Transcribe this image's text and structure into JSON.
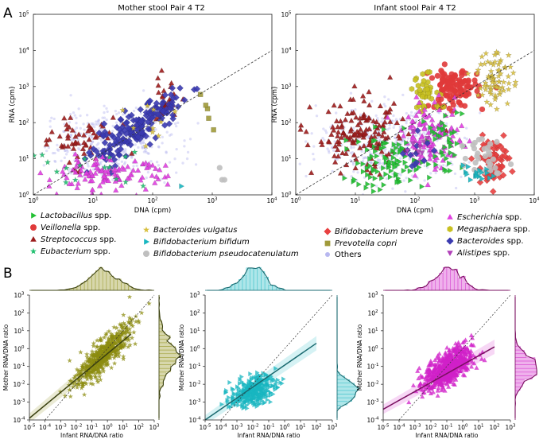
{
  "panel_labels": {
    "a": "A",
    "b": "B"
  },
  "legend": {
    "items": [
      {
        "label": "Lactobacillus",
        "suffix": " spp.",
        "italic": true,
        "color": "#22c033",
        "marker": "triangle-right"
      },
      {
        "label": "Veillonella",
        "suffix": " spp.",
        "italic": true,
        "color": "#e03a3a",
        "marker": "circle"
      },
      {
        "label": "Streptococcus",
        "suffix": " spp.",
        "italic": true,
        "color": "#9b1c1c",
        "marker": "triangle-up"
      },
      {
        "label": "Eubacterium",
        "suffix": " spp.",
        "italic": true,
        "color": "#22c070",
        "marker": "star"
      },
      {
        "label": "Bacteroides vulgatus",
        "suffix": "",
        "italic": true,
        "color": "#d8c040",
        "marker": "star"
      },
      {
        "label": "Bifidobacterium bifidum",
        "suffix": "",
        "italic": true,
        "color": "#18b6c0",
        "marker": "triangle-right"
      },
      {
        "label": "Bifidobacterium pseudocatenulatum",
        "suffix": "",
        "italic": true,
        "color": "#bfbfbf",
        "marker": "circle"
      },
      {
        "label": "Bifidobacterium breve",
        "suffix": "",
        "italic": true,
        "color": "#e84040",
        "marker": "diamond"
      },
      {
        "label": "Prevotella copri",
        "suffix": "",
        "italic": true,
        "color": "#a09a3a",
        "marker": "square"
      },
      {
        "label": "Others",
        "suffix": "",
        "italic": false,
        "color": "#b8b8f0",
        "marker": "dot"
      },
      {
        "label": "Escherichia",
        "suffix": " spp.",
        "italic": true,
        "color": "#e040e0",
        "marker": "triangle-up"
      },
      {
        "label": "Megasphaera",
        "suffix": " spp.",
        "italic": true,
        "color": "#c8c020",
        "marker": "hexagon"
      },
      {
        "label": "Bacteroides",
        "suffix": " spp.",
        "italic": true,
        "color": "#3a3ab0",
        "marker": "diamond"
      },
      {
        "label": "Alistipes",
        "suffix": " spp.",
        "italic": true,
        "color": "#b040b8",
        "marker": "triangle-down"
      }
    ]
  },
  "chart_data": [
    {
      "id": "mother_scatter",
      "type": "scatter",
      "title": "Mother stool Pair 4 T2",
      "xlabel": "DNA (cpm)",
      "ylabel": "RNA (cpm)",
      "xscale": "log",
      "yscale": "log",
      "xlim_exp": [
        0,
        4
      ],
      "ylim_exp": [
        0,
        5
      ],
      "x_ticks": [
        {
          "base": "10",
          "exp": "0"
        },
        {
          "base": "10",
          "exp": "1"
        },
        {
          "base": "10",
          "exp": "2"
        },
        {
          "base": "10",
          "exp": "3"
        },
        {
          "base": "10",
          "exp": "4"
        }
      ],
      "y_ticks": [
        {
          "base": "10",
          "exp": "0"
        },
        {
          "base": "10",
          "exp": "1"
        },
        {
          "base": "10",
          "exp": "2"
        },
        {
          "base": "10",
          "exp": "3"
        },
        {
          "base": "10",
          "exp": "4"
        },
        {
          "base": "10",
          "exp": "5"
        }
      ],
      "reference_line": "y = x (dashed)",
      "clusters": [
        {
          "group": "Others",
          "color": "#b8b8f0",
          "marker": "dot",
          "cx": 1.3,
          "cy": 1.4,
          "sx": 0.55,
          "sy": 0.5,
          "n": 380
        },
        {
          "group": "Streptococcus",
          "color": "#9b1c1c",
          "marker": "triangle-up",
          "cx": 0.7,
          "cy": 1.55,
          "sx": 0.35,
          "sy": 0.35,
          "n": 60
        },
        {
          "group": "Streptococcus",
          "color": "#9b1c1c",
          "marker": "triangle-up",
          "cx": 2.2,
          "cy": 2.55,
          "sx": 0.12,
          "sy": 0.3,
          "n": 35
        },
        {
          "group": "Bacteroides",
          "color": "#3a3ab0",
          "marker": "diamond",
          "cx": 1.75,
          "cy": 1.85,
          "sx": 0.38,
          "sy": 0.48,
          "corr": 0.85,
          "n": 170
        },
        {
          "group": "Escherichia",
          "color": "#e040e0",
          "marker": "triangle-up",
          "cx": 1.2,
          "cy": 0.55,
          "sx": 0.5,
          "sy": 0.22,
          "n": 110
        },
        {
          "group": "Eubacterium",
          "color": "#22c070",
          "marker": "star",
          "cx": 0.9,
          "cy": 0.75,
          "sx": 0.5,
          "sy": 0.25,
          "n": 18
        },
        {
          "group": "Bacteroides vulgatus",
          "color": "#d8c040",
          "marker": "star",
          "cx": 2.1,
          "cy": 2.0,
          "sx": 0.25,
          "sy": 0.45,
          "n": 10
        },
        {
          "group": "Prevotella copri",
          "color": "#a09a3a",
          "marker": "square",
          "cx": 2.85,
          "cy": 2.25,
          "sx": 0.15,
          "sy": 0.3,
          "n": 5
        },
        {
          "group": "Bifidobacterium pseudocatenulatum",
          "color": "#bfbfbf",
          "marker": "circle",
          "cx": 3.2,
          "cy": 0.5,
          "sx": 0.06,
          "sy": 0.25,
          "n": 3
        },
        {
          "group": "Bifidobacterium bifidum",
          "color": "#18b6c0",
          "marker": "triangle-right",
          "cx": 2.5,
          "cy": 0.2,
          "sx": 0.02,
          "sy": 0.02,
          "n": 1
        }
      ]
    },
    {
      "id": "infant_scatter",
      "type": "scatter",
      "title": "Infant stool Pair 4 T2",
      "xlabel": "DNA (cpm)",
      "ylabel": "RNA (cpm)",
      "xscale": "log",
      "yscale": "log",
      "xlim_exp": [
        0,
        4
      ],
      "ylim_exp": [
        0,
        5
      ],
      "x_ticks": [
        {
          "base": "10",
          "exp": "0"
        },
        {
          "base": "10",
          "exp": "1"
        },
        {
          "base": "10",
          "exp": "2"
        },
        {
          "base": "10",
          "exp": "3"
        },
        {
          "base": "10",
          "exp": "4"
        }
      ],
      "y_ticks": [
        {
          "base": "10",
          "exp": "0"
        },
        {
          "base": "10",
          "exp": "1"
        },
        {
          "base": "10",
          "exp": "2"
        },
        {
          "base": "10",
          "exp": "3"
        },
        {
          "base": "10",
          "exp": "4"
        },
        {
          "base": "10",
          "exp": "5"
        }
      ],
      "reference_line": "y = x (dashed)",
      "clusters": [
        {
          "group": "Others",
          "color": "#b8b8f0",
          "marker": "dot",
          "cx": 1.6,
          "cy": 1.4,
          "sx": 0.6,
          "sy": 0.5,
          "n": 420
        },
        {
          "group": "Streptococcus",
          "color": "#9b1c1c",
          "marker": "triangle-up",
          "cx": 1.1,
          "cy": 1.6,
          "sx": 0.4,
          "sy": 0.5,
          "n": 150
        },
        {
          "group": "Veillonella",
          "color": "#e03a3a",
          "marker": "circle",
          "cx": 2.65,
          "cy": 2.95,
          "sx": 0.2,
          "sy": 0.28,
          "n": 110
        },
        {
          "group": "Megasphaera",
          "color": "#c8c020",
          "marker": "hexagon",
          "cx": 2.2,
          "cy": 2.8,
          "sx": 0.15,
          "sy": 0.25,
          "n": 40
        },
        {
          "group": "Megasphaera",
          "color": "#d8c040",
          "marker": "star",
          "cx": 3.35,
          "cy": 3.25,
          "sx": 0.15,
          "sy": 0.4,
          "n": 70
        },
        {
          "group": "Escherichia",
          "color": "#e040e0",
          "marker": "triangle-up",
          "cx": 2.3,
          "cy": 1.6,
          "sx": 0.25,
          "sy": 0.45,
          "n": 120
        },
        {
          "group": "Lactobacillus",
          "color": "#22c033",
          "marker": "triangle-right",
          "cx": 1.5,
          "cy": 0.85,
          "sx": 0.35,
          "sy": 0.4,
          "n": 90
        },
        {
          "group": "Lactobacillus",
          "color": "#22c033",
          "marker": "triangle-right",
          "cx": 2.5,
          "cy": 1.4,
          "sx": 0.15,
          "sy": 0.5,
          "n": 40
        },
        {
          "group": "Bifidobacterium breve",
          "color": "#e84040",
          "marker": "diamond",
          "cx": 3.3,
          "cy": 0.95,
          "sx": 0.15,
          "sy": 0.3,
          "n": 70
        },
        {
          "group": "Bifidobacterium pseudocatenulatum",
          "color": "#bfbfbf",
          "marker": "circle",
          "cx": 3.2,
          "cy": 1.2,
          "sx": 0.15,
          "sy": 0.3,
          "n": 30
        },
        {
          "group": "Bifidobacterium bifidum",
          "color": "#18b6c0",
          "marker": "triangle-right",
          "cx": 3.0,
          "cy": 0.55,
          "sx": 0.12,
          "sy": 0.3,
          "n": 18
        },
        {
          "group": "Bacteroides",
          "color": "#3a3ab0",
          "marker": "diamond",
          "cx": 1.95,
          "cy": 1.3,
          "sx": 0.15,
          "sy": 0.3,
          "n": 12
        },
        {
          "group": "Alistipes",
          "color": "#b040b8",
          "marker": "triangle-down",
          "cx": 2.05,
          "cy": 1.5,
          "sx": 0.1,
          "sy": 0.2,
          "n": 8
        }
      ]
    },
    {
      "id": "ratio_megasphaera",
      "type": "scatter",
      "xlabel": "Infant RNA/DNA ratio",
      "ylabel": "Mother RNA/DNA ratio",
      "xscale": "log",
      "yscale": "log",
      "xlim_exp": [
        -5,
        3
      ],
      "ylim_exp": [
        -4,
        3
      ],
      "x_ticks": [
        {
          "base": "10",
          "exp": "-5"
        },
        {
          "base": "10",
          "exp": "-4"
        },
        {
          "base": "10",
          "exp": "-3"
        },
        {
          "base": "10",
          "exp": "-2"
        },
        {
          "base": "10",
          "exp": "-1"
        },
        {
          "base": "10",
          "exp": "0"
        },
        {
          "base": "10",
          "exp": "1"
        },
        {
          "base": "10",
          "exp": "2"
        },
        {
          "base": "10",
          "exp": "3"
        }
      ],
      "y_ticks": [
        {
          "base": "10",
          "exp": "-4"
        },
        {
          "base": "10",
          "exp": "-3"
        },
        {
          "base": "10",
          "exp": "-2"
        },
        {
          "base": "10",
          "exp": "-1"
        },
        {
          "base": "10",
          "exp": "0"
        },
        {
          "base": "10",
          "exp": "1"
        },
        {
          "base": "10",
          "exp": "2"
        },
        {
          "base": "10",
          "exp": "3"
        }
      ],
      "color": "#8c8c10",
      "line_color": "#3a4010",
      "marker": "star",
      "cloud": {
        "cx": -0.3,
        "cy": -0.4,
        "sx": 0.9,
        "sy": 0.85,
        "corr": 0.85,
        "n": 520
      },
      "fit": {
        "x": [
          -5,
          1.5
        ],
        "y": [
          -3.9,
          0.8
        ]
      }
    },
    {
      "id": "ratio_bifidum",
      "type": "scatter",
      "xlabel": "Infant RNA/DNA ratio",
      "ylabel": "Mother RNA/DNA ratio",
      "xscale": "log",
      "yscale": "log",
      "xlim_exp": [
        -5,
        3
      ],
      "ylim_exp": [
        -4,
        3
      ],
      "x_ticks": [
        {
          "base": "10",
          "exp": "-5"
        },
        {
          "base": "10",
          "exp": "-4"
        },
        {
          "base": "10",
          "exp": "-3"
        },
        {
          "base": "10",
          "exp": "-2"
        },
        {
          "base": "10",
          "exp": "-1"
        },
        {
          "base": "10",
          "exp": "0"
        },
        {
          "base": "10",
          "exp": "1"
        },
        {
          "base": "10",
          "exp": "2"
        },
        {
          "base": "10",
          "exp": "3"
        }
      ],
      "y_ticks": [
        {
          "base": "10",
          "exp": "-4"
        },
        {
          "base": "10",
          "exp": "-3"
        },
        {
          "base": "10",
          "exp": "-2"
        },
        {
          "base": "10",
          "exp": "-1"
        },
        {
          "base": "10",
          "exp": "0"
        },
        {
          "base": "10",
          "exp": "1"
        },
        {
          "base": "10",
          "exp": "2"
        },
        {
          "base": "10",
          "exp": "3"
        }
      ],
      "color": "#18b6c0",
      "line_color": "#1a6a70",
      "marker": "triangle-right",
      "cloud": {
        "cx": -2.0,
        "cy": -2.4,
        "sx": 0.7,
        "sy": 0.45,
        "corr": 0.45,
        "n": 300
      },
      "fit": {
        "x": [
          -5,
          2.0
        ],
        "y": [
          -4.0,
          0.3
        ]
      }
    },
    {
      "id": "ratio_alistipes",
      "type": "scatter",
      "xlabel": "Infant RNA/DNA ratio",
      "ylabel": "Mother RNA/DNA ratio",
      "xscale": "log",
      "yscale": "log",
      "xlim_exp": [
        -5,
        3
      ],
      "ylim_exp": [
        -4,
        3
      ],
      "x_ticks": [
        {
          "base": "10",
          "exp": "-5"
        },
        {
          "base": "10",
          "exp": "-4"
        },
        {
          "base": "10",
          "exp": "-3"
        },
        {
          "base": "10",
          "exp": "-2"
        },
        {
          "base": "10",
          "exp": "-1"
        },
        {
          "base": "10",
          "exp": "0"
        },
        {
          "base": "10",
          "exp": "1"
        },
        {
          "base": "10",
          "exp": "2"
        },
        {
          "base": "10",
          "exp": "3"
        }
      ],
      "y_ticks": [
        {
          "base": "10",
          "exp": "-4"
        },
        {
          "base": "10",
          "exp": "-3"
        },
        {
          "base": "10",
          "exp": "-2"
        },
        {
          "base": "10",
          "exp": "-1"
        },
        {
          "base": "10",
          "exp": "0"
        },
        {
          "base": "10",
          "exp": "1"
        },
        {
          "base": "10",
          "exp": "2"
        },
        {
          "base": "10",
          "exp": "3"
        }
      ],
      "color": "#d020c8",
      "line_color": "#7a1060",
      "marker": "triangle-up",
      "cloud": {
        "cx": -0.9,
        "cy": -1.1,
        "sx": 0.75,
        "sy": 0.6,
        "corr": 0.6,
        "n": 600
      },
      "fit": {
        "x": [
          -5,
          2.0
        ],
        "y": [
          -3.4,
          0.1
        ]
      }
    }
  ]
}
